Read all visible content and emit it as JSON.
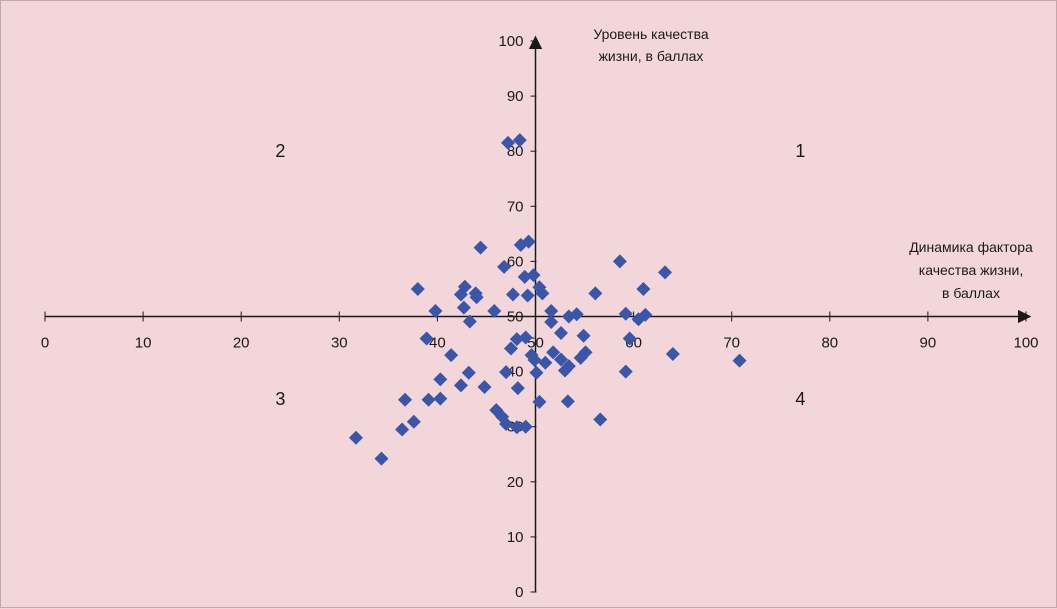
{
  "chart_data": {
    "type": "scatter",
    "xlabel": [
      "Динамика фактора",
      "качества жизни,",
      "в баллах"
    ],
    "ylabel": [
      "Уровень качества",
      "жизни, в баллах"
    ],
    "xlim": [
      0,
      100
    ],
    "ylim": [
      0,
      100
    ],
    "x_ticks": [
      0,
      10,
      20,
      30,
      40,
      50,
      60,
      70,
      80,
      90,
      100
    ],
    "y_ticks": [
      0,
      10,
      20,
      30,
      40,
      50,
      60,
      70,
      80,
      90,
      100
    ],
    "x_axis_crosses_y_at": 50,
    "y_axis_crosses_x_at": 50,
    "grid": false,
    "marker": "diamond",
    "marker_color": "#3a56a8",
    "quadrant_labels": [
      {
        "label": "1",
        "x": 77,
        "y": 80
      },
      {
        "label": "2",
        "x": 24,
        "y": 80
      },
      {
        "label": "3",
        "x": 24,
        "y": 35
      },
      {
        "label": "4",
        "x": 77,
        "y": 35
      }
    ],
    "points": [
      [
        47.2,
        81.5
      ],
      [
        48.4,
        82.0
      ],
      [
        44.4,
        62.5
      ],
      [
        48.5,
        63.0
      ],
      [
        49.3,
        63.6
      ],
      [
        46.8,
        59.0
      ],
      [
        48.9,
        57.2
      ],
      [
        49.8,
        57.5
      ],
      [
        50.4,
        55.3
      ],
      [
        42.4,
        54.0
      ],
      [
        42.8,
        55.4
      ],
      [
        43.9,
        54.2
      ],
      [
        47.7,
        54.0
      ],
      [
        49.2,
        53.8
      ],
      [
        50.7,
        54.2
      ],
      [
        42.7,
        51.6
      ],
      [
        43.3,
        49.1
      ],
      [
        44.0,
        53.5
      ],
      [
        45.8,
        51.0
      ],
      [
        39.8,
        51.0
      ],
      [
        38.0,
        55.0
      ],
      [
        51.6,
        51.0
      ],
      [
        53.4,
        50.0
      ],
      [
        54.2,
        50.4
      ],
      [
        56.1,
        54.2
      ],
      [
        58.6,
        60.0
      ],
      [
        61.0,
        55.0
      ],
      [
        63.2,
        58.0
      ],
      [
        59.2,
        50.5
      ],
      [
        60.5,
        49.5
      ],
      [
        61.2,
        50.3
      ],
      [
        59.6,
        46.0
      ],
      [
        64.0,
        43.2
      ],
      [
        70.8,
        42.0
      ],
      [
        56.6,
        31.3
      ],
      [
        59.2,
        40.0
      ],
      [
        38.9,
        46.0
      ],
      [
        41.4,
        43.0
      ],
      [
        43.2,
        39.8
      ],
      [
        40.3,
        38.6
      ],
      [
        42.4,
        37.5
      ],
      [
        44.8,
        37.2
      ],
      [
        46.0,
        33.0
      ],
      [
        46.6,
        31.8
      ],
      [
        47.0,
        30.5
      ],
      [
        48.1,
        29.9
      ],
      [
        49.0,
        30.0
      ],
      [
        50.4,
        34.5
      ],
      [
        53.3,
        34.6
      ],
      [
        36.7,
        34.9
      ],
      [
        39.1,
        34.9
      ],
      [
        40.3,
        35.1
      ],
      [
        37.6,
        30.9
      ],
      [
        36.4,
        29.5
      ],
      [
        31.7,
        28.0
      ],
      [
        34.3,
        24.2
      ],
      [
        48.2,
        37.0
      ],
      [
        47.0,
        39.9
      ],
      [
        47.5,
        44.2
      ],
      [
        48.1,
        45.9
      ],
      [
        49.0,
        46.2
      ],
      [
        49.6,
        43.0
      ],
      [
        50.1,
        39.8
      ],
      [
        51.0,
        41.6
      ],
      [
        51.8,
        43.5
      ],
      [
        52.6,
        42.2
      ],
      [
        53.4,
        41.0
      ],
      [
        54.6,
        42.5
      ],
      [
        55.1,
        43.5
      ],
      [
        54.9,
        46.5
      ],
      [
        52.6,
        47.0
      ],
      [
        51.6,
        49.0
      ],
      [
        49.9,
        42.1
      ],
      [
        53.0,
        40.2
      ]
    ]
  }
}
